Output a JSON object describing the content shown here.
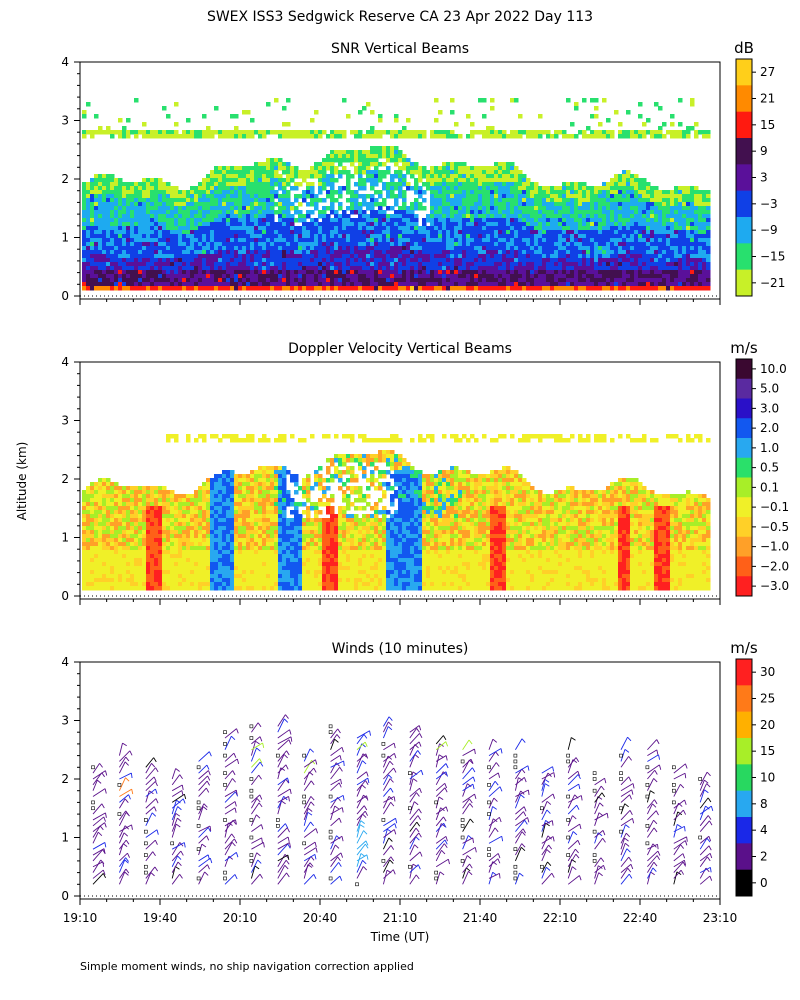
{
  "page_title": "SWEX ISS3 Sedgwick Reserve CA  23 Apr 2022 Day 113",
  "footnote": "Simple moment winds, no ship navigation correction applied",
  "ylabel": "Altitude (km)",
  "xlabel": "Time (UT)",
  "chart_data": [
    {
      "type": "heatmap",
      "title": "SNR Vertical Beams",
      "colorbar": {
        "unit": "dB",
        "labels": [
          "27",
          "21",
          "15",
          "9",
          "3",
          "−3",
          "−9",
          "−15",
          "−21"
        ],
        "colors": [
          "#ffcf1a",
          "#ff8a00",
          "#ff1a10",
          "#42104f",
          "#5a109a",
          "#1040e6",
          "#1eaaf0",
          "#28e06e",
          "#c8f028"
        ]
      },
      "x_ticks": [
        "19:10",
        "19:40",
        "20:10",
        "20:40",
        "21:10",
        "21:40",
        "22:10",
        "22:40",
        "23:10"
      ],
      "y_ticks": [
        "0",
        "1",
        "2",
        "3",
        "4"
      ],
      "ylim": [
        0,
        4
      ]
    },
    {
      "type": "heatmap",
      "title": "Doppler Velocity Vertical Beams",
      "colorbar": {
        "unit": "m/s",
        "labels": [
          "10.0",
          "5.0",
          "3.0",
          "2.0",
          "1.0",
          "0.5",
          "0.1",
          "−0.1",
          "−0.5",
          "−1.0",
          "−2.0",
          "−3.0"
        ],
        "colors": [
          "#3a0830",
          "#5a2aa0",
          "#2a10c8",
          "#1258f0",
          "#28a8f0",
          "#2ae06a",
          "#a8ee28",
          "#f0f028",
          "#ffd028",
          "#ffa028",
          "#ff6018",
          "#ff2020"
        ]
      },
      "x_ticks": [
        "19:10",
        "19:40",
        "20:10",
        "20:40",
        "21:10",
        "21:40",
        "22:10",
        "22:40",
        "23:10"
      ],
      "y_ticks": [
        "0",
        "1",
        "2",
        "3",
        "4"
      ],
      "ylim": [
        0,
        4
      ]
    },
    {
      "type": "scatter",
      "title": "Winds (10 minutes)",
      "colorbar": {
        "unit": "m/s",
        "labels": [
          "30",
          "25",
          "20",
          "15",
          "10",
          "8",
          "4",
          "2",
          "0"
        ],
        "colors": [
          "#ff2020",
          "#ff7a18",
          "#ffb000",
          "#a8ee28",
          "#28d860",
          "#28a8f0",
          "#1a28e8",
          "#5a108a",
          "#000000"
        ]
      },
      "x_ticks": [
        "19:10",
        "19:40",
        "20:10",
        "20:40",
        "21:10",
        "21:40",
        "22:10",
        "22:40",
        "23:10"
      ],
      "y_ticks": [
        "0",
        "1",
        "2",
        "3",
        "4"
      ],
      "ylim": [
        0,
        4
      ],
      "xlabel": "Time (UT)"
    }
  ]
}
